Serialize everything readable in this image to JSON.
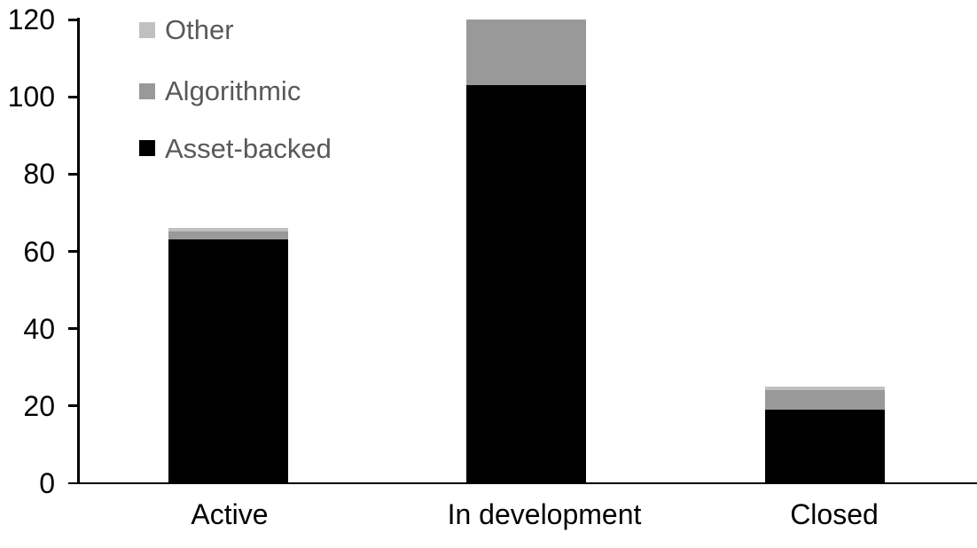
{
  "chart_data": {
    "type": "bar",
    "stacked": true,
    "title": "",
    "xlabel": "",
    "ylabel": "",
    "categories": [
      "Active",
      "In development",
      "Closed"
    ],
    "series": [
      {
        "name": "Asset-backed",
        "color": "#000000",
        "values": [
          63,
          103,
          19
        ]
      },
      {
        "name": "Algorithmic",
        "color": "#999999",
        "values": [
          2,
          17,
          5
        ]
      },
      {
        "name": "Other",
        "color": "#c0c0c0",
        "values": [
          1,
          0,
          1
        ]
      }
    ],
    "totals": [
      66,
      120,
      25
    ],
    "ylim": [
      0,
      120
    ],
    "yticks": [
      0,
      20,
      40,
      60,
      80,
      100,
      120
    ],
    "grid": false,
    "legend_position": "inside-top-left",
    "legend_order": [
      "Other",
      "Algorithmic",
      "Asset-backed"
    ]
  },
  "styles": {
    "background": "#ffffff",
    "axis_color": "#000000",
    "tick_label_color": "#000000",
    "category_label_color": "#000000",
    "legend_text_color": "#595959"
  }
}
